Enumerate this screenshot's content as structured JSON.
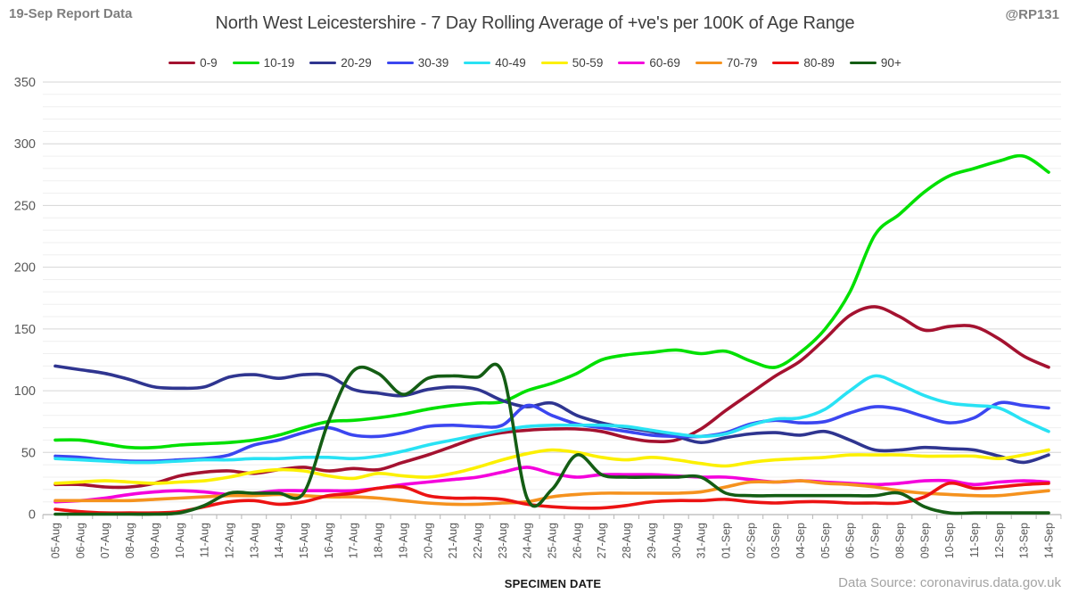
{
  "header": {
    "report_note": "19-Sep Report Data",
    "title": "North West Leicestershire - 7 Day Rolling Average of +ve's per 100K of Age Range",
    "handle": "@RP131"
  },
  "footer": {
    "x_axis_title": "SPECIMEN DATE",
    "data_source": "Data Source: coronavirus.data.gov.uk"
  },
  "style_colors": {
    "grid_minor": "#efefef",
    "grid_major": "#d6d6d6",
    "axis_line": "#b7b7b7",
    "tick_label": "#595959"
  },
  "chart_data": {
    "type": "line",
    "title": "North West Leicestershire - 7 Day Rolling Average of +ve's per 100K of Age Range",
    "xlabel": "SPECIMEN DATE",
    "ylabel": "",
    "ylim": [
      0,
      350
    ],
    "ytick_step": 50,
    "yminor_step": 10,
    "grid": true,
    "legend_position": "top",
    "smoothed_lines": true,
    "categories": [
      "05-Aug",
      "06-Aug",
      "07-Aug",
      "08-Aug",
      "09-Aug",
      "10-Aug",
      "11-Aug",
      "12-Aug",
      "13-Aug",
      "14-Aug",
      "15-Aug",
      "16-Aug",
      "17-Aug",
      "18-Aug",
      "19-Aug",
      "20-Aug",
      "21-Aug",
      "22-Aug",
      "23-Aug",
      "24-Aug",
      "25-Aug",
      "26-Aug",
      "27-Aug",
      "28-Aug",
      "29-Aug",
      "30-Aug",
      "31-Aug",
      "01-Sep",
      "02-Sep",
      "03-Sep",
      "04-Sep",
      "05-Sep",
      "06-Sep",
      "07-Sep",
      "08-Sep",
      "09-Sep",
      "10-Sep",
      "11-Sep",
      "12-Sep",
      "13-Sep",
      "14-Sep"
    ],
    "series": [
      {
        "name": "0-9",
        "color": "#a41230",
        "values": [
          24,
          24,
          22,
          22,
          25,
          31,
          34,
          35,
          33,
          36,
          38,
          35,
          37,
          36,
          42,
          48,
          55,
          62,
          66,
          68,
          69,
          69,
          67,
          62,
          59,
          60,
          69,
          84,
          98,
          112,
          124,
          142,
          161,
          168,
          160,
          149,
          152,
          152,
          142,
          128,
          119
        ]
      },
      {
        "name": "10-19",
        "color": "#00e000",
        "values": [
          60,
          60,
          57,
          54,
          54,
          56,
          57,
          58,
          60,
          64,
          70,
          75,
          76,
          78,
          81,
          85,
          88,
          90,
          91,
          100,
          106,
          114,
          125,
          129,
          131,
          133,
          130,
          132,
          124,
          119,
          131,
          150,
          180,
          226,
          243,
          261,
          274,
          280,
          286,
          290,
          277
        ]
      },
      {
        "name": "20-29",
        "color": "#2f3590",
        "values": [
          120,
          117,
          114,
          109,
          103,
          102,
          103,
          111,
          113,
          110,
          113,
          112,
          101,
          98,
          96,
          101,
          103,
          101,
          92,
          87,
          90,
          80,
          74,
          70,
          67,
          63,
          58,
          62,
          65,
          66,
          64,
          67,
          60,
          52,
          52,
          54,
          53,
          52,
          47,
          42,
          48
        ]
      },
      {
        "name": "30-39",
        "color": "#3b46f0",
        "values": [
          47,
          46,
          44,
          43,
          43,
          44,
          45,
          48,
          56,
          60,
          66,
          70,
          64,
          63,
          66,
          71,
          72,
          71,
          72,
          88,
          80,
          73,
          70,
          67,
          64,
          63,
          63,
          66,
          73,
          76,
          74,
          75,
          82,
          87,
          85,
          79,
          74,
          78,
          90,
          88,
          86
        ]
      },
      {
        "name": "40-49",
        "color": "#29e2f4",
        "values": [
          45,
          44,
          43,
          42,
          42,
          43,
          44,
          44,
          45,
          45,
          46,
          46,
          45,
          47,
          51,
          56,
          60,
          64,
          68,
          71,
          72,
          72,
          72,
          71,
          68,
          65,
          63,
          65,
          72,
          77,
          78,
          85,
          100,
          112,
          105,
          96,
          90,
          88,
          86,
          76,
          67
        ]
      },
      {
        "name": "50-59",
        "color": "#fcf000",
        "values": [
          25,
          26,
          27,
          26,
          25,
          26,
          27,
          30,
          34,
          36,
          35,
          31,
          29,
          33,
          31,
          30,
          33,
          38,
          44,
          49,
          52,
          50,
          46,
          44,
          46,
          44,
          41,
          39,
          42,
          44,
          45,
          46,
          48,
          48,
          48,
          47,
          47,
          47,
          45,
          48,
          52
        ]
      },
      {
        "name": "60-69",
        "color": "#f401dc",
        "values": [
          10,
          11,
          13,
          16,
          18,
          19,
          18,
          16,
          17,
          19,
          19,
          19,
          19,
          21,
          24,
          26,
          28,
          30,
          34,
          38,
          33,
          30,
          32,
          32,
          32,
          31,
          30,
          30,
          28,
          26,
          27,
          26,
          25,
          24,
          25,
          27,
          27,
          24,
          26,
          27,
          26
        ]
      },
      {
        "name": "70-79",
        "color": "#f5921e",
        "values": [
          11,
          11,
          11,
          11,
          12,
          13,
          14,
          15,
          15,
          16,
          15,
          14,
          14,
          13,
          11,
          9,
          8,
          8,
          9,
          10,
          14,
          16,
          17,
          17,
          17,
          17,
          18,
          22,
          26,
          26,
          27,
          25,
          24,
          22,
          19,
          17,
          16,
          15,
          15,
          17,
          19
        ]
      },
      {
        "name": "80-89",
        "color": "#ec1313",
        "values": [
          4,
          2,
          1,
          1,
          1,
          2,
          6,
          10,
          11,
          8,
          10,
          15,
          17,
          21,
          22,
          15,
          13,
          13,
          12,
          8,
          6,
          5,
          5,
          7,
          10,
          11,
          11,
          12,
          10,
          9,
          10,
          10,
          9,
          9,
          9,
          14,
          25,
          21,
          22,
          24,
          25
        ]
      },
      {
        "name": "90+",
        "color": "#145d14",
        "values": [
          0,
          0,
          0,
          0,
          0,
          1,
          7,
          17,
          17,
          17,
          17,
          75,
          116,
          114,
          97,
          110,
          112,
          111,
          115,
          13,
          20,
          48,
          32,
          30,
          30,
          30,
          30,
          17,
          15,
          15,
          15,
          15,
          15,
          15,
          17,
          6,
          1,
          1,
          1,
          1,
          1
        ]
      }
    ]
  }
}
